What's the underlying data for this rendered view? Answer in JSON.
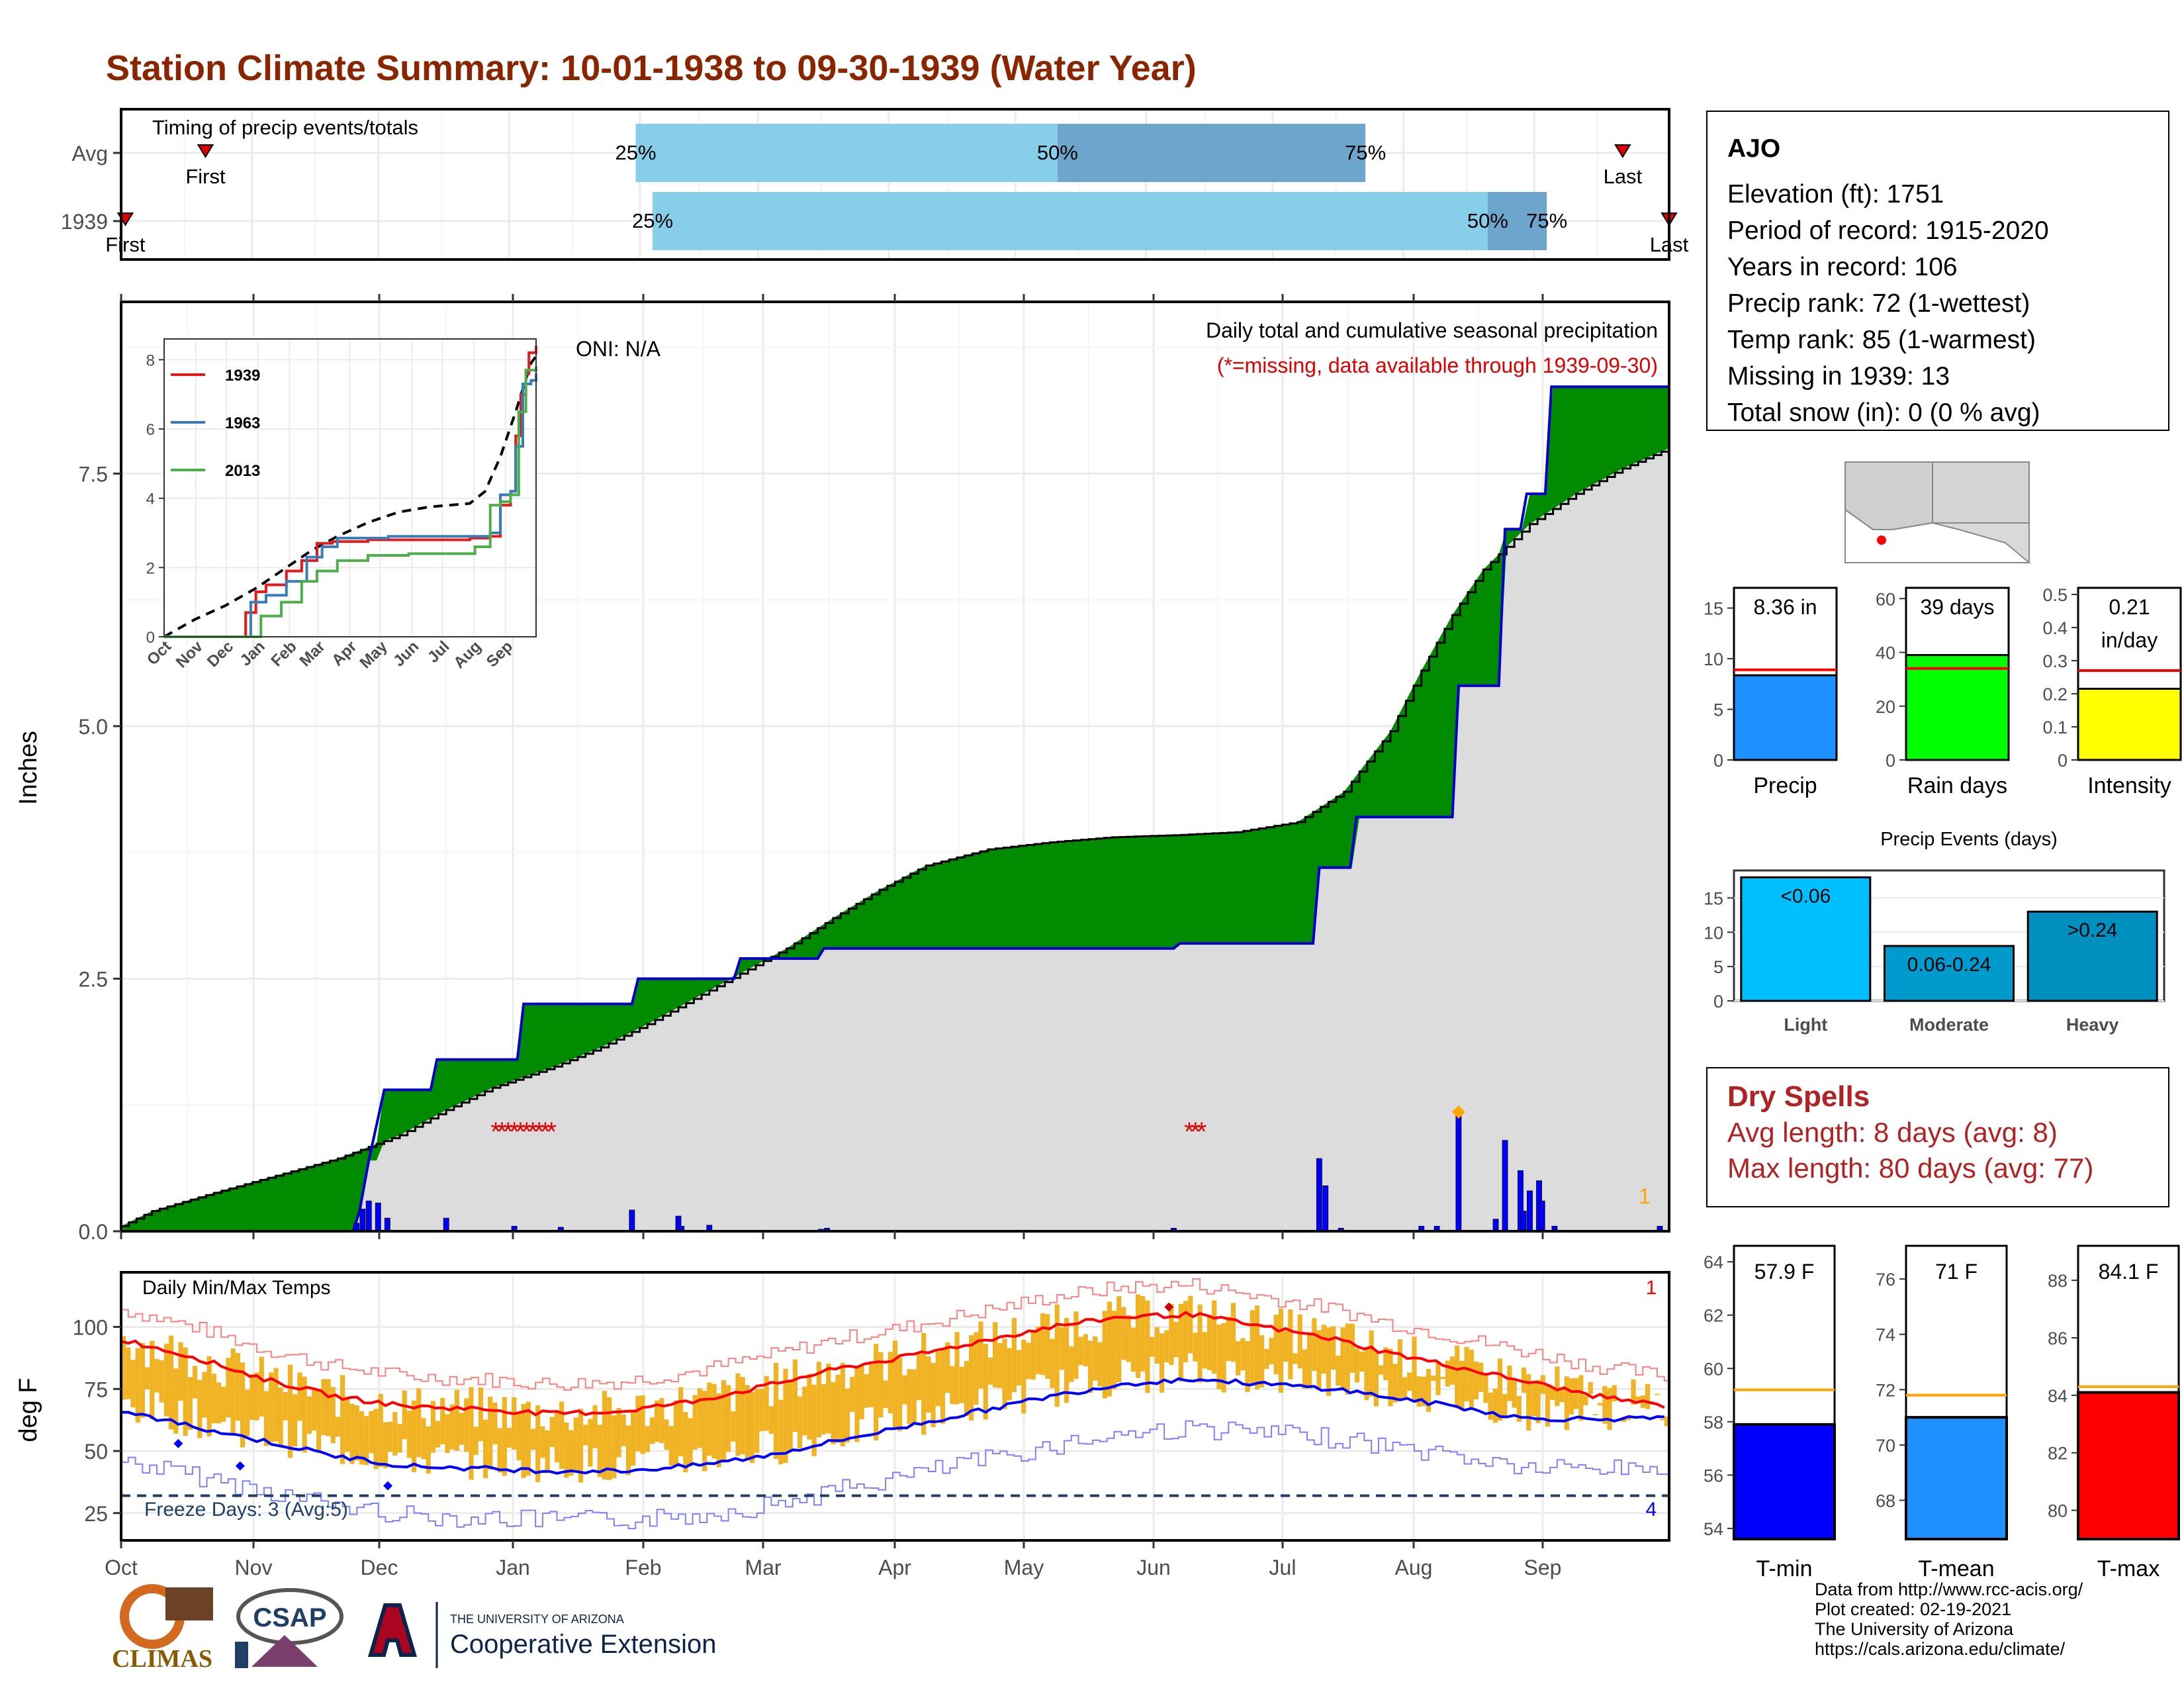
{
  "title": "Station Climate Summary: 10-01-1938 to 09-30-1939 (Water Year)",
  "months": [
    "Oct",
    "Nov",
    "Dec",
    "Jan",
    "Feb",
    "Mar",
    "Apr",
    "May",
    "Jun",
    "Jul",
    "Aug",
    "Sep"
  ],
  "timing_panel": {
    "label": "Timing of precip events/totals",
    "rows": [
      {
        "name": "Avg",
        "first_label": "First",
        "last_label": "Last",
        "first_doy": 20,
        "last_doy": 356,
        "p25": 122,
        "p50": 222,
        "p75": 295,
        "p25_label": "25%",
        "p50_label": "50%",
        "p75_label": "75%"
      },
      {
        "name": "1939",
        "first_label": "First",
        "last_label": "Last",
        "first_doy": 1,
        "last_doy": 367,
        "p25": 126,
        "p50": 324,
        "p75": 338,
        "p25_label": "25%",
        "p50_label": "50%",
        "p75_label": "75%"
      }
    ],
    "colors": {
      "light": "#87CEEB",
      "dark": "#6CA6CD",
      "marker": "#E00000"
    }
  },
  "precip_panel": {
    "ylabel": "Inches",
    "yticks": [
      0.0,
      2.5,
      5.0,
      7.5
    ],
    "ytick_labels": [
      "0.0",
      "2.5",
      "5.0",
      "7.5"
    ],
    "ylim": [
      0,
      9.2
    ],
    "oni_label": "ONI: N/A",
    "caption1": "Daily total and cumulative seasonal precipitation",
    "caption2": "(*=missing, data available through 1939-09-30)",
    "corner_count": "1",
    "colors": {
      "avg_fill": "#8B5A00",
      "obs_line": "#0000CD",
      "surplus_fill": "#008B00",
      "bg_fill": "#DCDCDC",
      "bar": "#0000FF",
      "missing": "#E00000",
      "max_marker": "#FFA500"
    },
    "avg_cumulative_points": [
      [
        0,
        0.05
      ],
      [
        10,
        0.2
      ],
      [
        30,
        0.38
      ],
      [
        50,
        0.55
      ],
      [
        70,
        0.72
      ],
      [
        90,
        0.95
      ],
      [
        105,
        1.2
      ],
      [
        120,
        1.42
      ],
      [
        140,
        1.63
      ],
      [
        155,
        1.82
      ],
      [
        170,
        2.05
      ],
      [
        185,
        2.3
      ],
      [
        200,
        2.55
      ],
      [
        215,
        2.8
      ],
      [
        230,
        3.1
      ],
      [
        245,
        3.38
      ],
      [
        260,
        3.62
      ],
      [
        280,
        3.78
      ],
      [
        300,
        3.85
      ],
      [
        320,
        3.9
      ],
      [
        340,
        3.92
      ],
      [
        360,
        3.95
      ],
      [
        380,
        4.05
      ],
      [
        395,
        4.35
      ],
      [
        410,
        4.95
      ],
      [
        420,
        5.55
      ],
      [
        430,
        6.1
      ],
      [
        440,
        6.55
      ],
      [
        455,
        7.0
      ],
      [
        470,
        7.3
      ],
      [
        485,
        7.55
      ],
      [
        500,
        7.75
      ]
    ],
    "obs_cumulative_steps": [
      [
        0,
        0
      ],
      [
        75,
        0
      ],
      [
        77,
        0.2
      ],
      [
        80,
        0.7
      ],
      [
        85,
        1.4
      ],
      [
        100,
        1.4
      ],
      [
        102,
        1.7
      ],
      [
        128,
        1.7
      ],
      [
        130,
        2.25
      ],
      [
        165,
        2.25
      ],
      [
        167,
        2.5
      ],
      [
        198,
        2.5
      ],
      [
        200,
        2.7
      ],
      [
        225,
        2.7
      ],
      [
        227,
        2.8
      ],
      [
        340,
        2.8
      ],
      [
        342,
        2.85
      ],
      [
        385,
        2.85
      ],
      [
        387,
        3.6
      ],
      [
        397,
        3.6
      ],
      [
        399,
        4.1
      ],
      [
        430,
        4.1
      ],
      [
        432,
        5.4
      ],
      [
        445,
        5.4
      ],
      [
        447,
        6.95
      ],
      [
        452,
        6.95
      ],
      [
        454,
        7.3
      ],
      [
        460,
        7.3
      ],
      [
        462,
        8.36
      ],
      [
        500,
        8.36
      ]
    ],
    "daily_bars": [
      [
        76,
        0.08
      ],
      [
        78,
        0.22
      ],
      [
        80,
        0.3
      ],
      [
        83,
        0.28
      ],
      [
        86,
        0.13
      ],
      [
        105,
        0.13
      ],
      [
        127,
        0.05
      ],
      [
        142,
        0.04
      ],
      [
        165,
        0.21
      ],
      [
        180,
        0.15
      ],
      [
        181,
        0.05
      ],
      [
        190,
        0.06
      ],
      [
        226,
        0.02
      ],
      [
        228,
        0.03
      ],
      [
        340,
        0.03
      ],
      [
        387,
        0.72
      ],
      [
        389,
        0.45
      ],
      [
        394,
        0.03
      ],
      [
        420,
        0.05
      ],
      [
        425,
        0.05
      ],
      [
        432,
        1.15
      ],
      [
        444,
        0.12
      ],
      [
        447,
        0.9
      ],
      [
        452,
        0.6
      ],
      [
        453,
        0.2
      ],
      [
        455,
        0.4
      ],
      [
        458,
        0.5
      ],
      [
        459,
        0.3
      ],
      [
        463,
        0.05
      ],
      [
        497,
        0.05
      ]
    ],
    "missing_marks": [
      [
        121,
        0.99
      ],
      [
        123,
        0.99
      ],
      [
        125,
        0.99
      ],
      [
        127,
        0.99
      ],
      [
        129,
        0.99
      ],
      [
        131,
        0.99
      ],
      [
        133,
        0.99
      ],
      [
        135,
        0.99
      ],
      [
        137,
        0.99
      ],
      [
        139,
        0.99
      ],
      [
        345,
        0.99
      ],
      [
        347,
        0.99
      ],
      [
        349,
        0.99
      ]
    ],
    "max_marker": [
      432,
      1.18
    ]
  },
  "inset": {
    "yticks": [
      0,
      2,
      4,
      6,
      8
    ],
    "ytick_labels": [
      "0",
      "2",
      "4",
      "6",
      "8"
    ],
    "xlabels": [
      "Oct",
      "Nov",
      "Dec",
      "Jan",
      "Feb",
      "Mar",
      "Apr",
      "May",
      "Jun",
      "Jul",
      "Aug",
      "Sep"
    ],
    "series": [
      {
        "name": "1939",
        "color": "#E41A1C",
        "points": [
          [
            0,
            0
          ],
          [
            75,
            0
          ],
          [
            80,
            0.7
          ],
          [
            90,
            1.3
          ],
          [
            100,
            1.5
          ],
          [
            120,
            1.9
          ],
          [
            135,
            2.2
          ],
          [
            150,
            2.7
          ],
          [
            165,
            2.75
          ],
          [
            200,
            2.8
          ],
          [
            250,
            2.8
          ],
          [
            300,
            2.85
          ],
          [
            320,
            2.9
          ],
          [
            330,
            3.8
          ],
          [
            340,
            4.2
          ],
          [
            345,
            5.8
          ],
          [
            350,
            7.0
          ],
          [
            355,
            7.6
          ],
          [
            358,
            8.2
          ],
          [
            365,
            8.4
          ]
        ]
      },
      {
        "name": "1963",
        "color": "#377EB8",
        "points": [
          [
            0,
            0
          ],
          [
            80,
            0
          ],
          [
            85,
            1.0
          ],
          [
            100,
            1.2
          ],
          [
            120,
            1.6
          ],
          [
            140,
            2.3
          ],
          [
            155,
            2.6
          ],
          [
            170,
            2.85
          ],
          [
            220,
            2.9
          ],
          [
            300,
            2.9
          ],
          [
            320,
            3.0
          ],
          [
            330,
            4.1
          ],
          [
            340,
            4.2
          ],
          [
            345,
            5.5
          ],
          [
            352,
            7.3
          ],
          [
            360,
            7.4
          ],
          [
            365,
            7.6
          ]
        ]
      },
      {
        "name": "2013",
        "color": "#4DAF4A",
        "points": [
          [
            0,
            0
          ],
          [
            80,
            0
          ],
          [
            95,
            0.6
          ],
          [
            115,
            1.0
          ],
          [
            135,
            1.6
          ],
          [
            150,
            1.9
          ],
          [
            170,
            2.2
          ],
          [
            200,
            2.35
          ],
          [
            240,
            2.4
          ],
          [
            290,
            2.4
          ],
          [
            305,
            2.6
          ],
          [
            320,
            3.8
          ],
          [
            330,
            3.9
          ],
          [
            340,
            4.1
          ],
          [
            348,
            6.5
          ],
          [
            355,
            7.7
          ],
          [
            365,
            7.8
          ]
        ]
      }
    ],
    "avg_points": [
      [
        0,
        0
      ],
      [
        30,
        0.5
      ],
      [
        60,
        0.9
      ],
      [
        90,
        1.4
      ],
      [
        120,
        2.0
      ],
      [
        145,
        2.5
      ],
      [
        170,
        2.9
      ],
      [
        200,
        3.3
      ],
      [
        230,
        3.6
      ],
      [
        260,
        3.75
      ],
      [
        300,
        3.85
      ],
      [
        315,
        4.2
      ],
      [
        330,
        5.2
      ],
      [
        345,
        6.5
      ],
      [
        360,
        7.9
      ],
      [
        365,
        8.1
      ]
    ],
    "ylim": [
      0,
      8.6
    ]
  },
  "temp_panel": {
    "ylabel": "deg F",
    "yticks": [
      25,
      50,
      75,
      100
    ],
    "ytick_labels": [
      "25",
      "50",
      "75",
      "100"
    ],
    "ylim": [
      14,
      122
    ],
    "label": "Daily Min/Max Temps",
    "freeze_label": "Freeze Days: 3 (Avg:5)",
    "freeze_line": 32,
    "count_hot": "1",
    "count_cold": "4",
    "colors": {
      "range": "#F0B323",
      "avg_max": "#FF0000",
      "avg_min": "#0000FF",
      "rec_max": "#FF7F7F",
      "rec_min": "#7F7FFF",
      "freeze": "#1F3F66"
    },
    "avg_max_points": [
      [
        0,
        95
      ],
      [
        30,
        88
      ],
      [
        60,
        79
      ],
      [
        90,
        72
      ],
      [
        120,
        68
      ],
      [
        150,
        67
      ],
      [
        180,
        65
      ],
      [
        210,
        66
      ],
      [
        240,
        70
      ],
      [
        270,
        76
      ],
      [
        300,
        83
      ],
      [
        330,
        88
      ],
      [
        360,
        94
      ],
      [
        390,
        100
      ],
      [
        420,
        104
      ],
      [
        450,
        105
      ],
      [
        480,
        100
      ],
      [
        510,
        95
      ],
      [
        530,
        90
      ],
      [
        560,
        84
      ],
      [
        590,
        78
      ],
      [
        620,
        72
      ],
      [
        650,
        68
      ]
    ],
    "avg_min_points": [
      [
        0,
        66
      ],
      [
        30,
        60
      ],
      [
        60,
        54
      ],
      [
        90,
        48
      ],
      [
        120,
        44
      ],
      [
        150,
        43
      ],
      [
        180,
        42
      ],
      [
        210,
        42
      ],
      [
        240,
        44
      ],
      [
        270,
        48
      ],
      [
        300,
        54
      ],
      [
        330,
        60
      ],
      [
        360,
        66
      ],
      [
        390,
        72
      ],
      [
        420,
        77
      ],
      [
        450,
        79
      ],
      [
        480,
        77
      ],
      [
        510,
        75
      ],
      [
        530,
        72
      ],
      [
        560,
        68
      ],
      [
        590,
        63
      ]
    ]
  },
  "station": {
    "name": "AJO",
    "lines": [
      "Elevation (ft): 1751",
      "Period of record: 1915-2020",
      "Years in record: 106",
      "Precip rank: 72 (1-wettest)",
      "Temp rank: 85 (1-warmest)",
      "Missing in 1939: 13",
      "Total snow (in): 0 (0 % avg)"
    ]
  },
  "small_bars": [
    {
      "key": "precip",
      "label": "Precip",
      "value_text": "8.36 in",
      "value": 8.36,
      "avg": 8.9,
      "ylim": [
        0,
        17
      ],
      "yticks": [
        0,
        5,
        10,
        15
      ],
      "color": "#1E90FF"
    },
    {
      "key": "raindays",
      "label": "Rain days",
      "value_text": "39 days",
      "value": 39,
      "avg": 34,
      "ylim": [
        0,
        64
      ],
      "yticks": [
        0,
        20,
        40,
        60
      ],
      "color": "#00FF00"
    },
    {
      "key": "intensity",
      "label": "Intensity",
      "value_text": "0.21",
      "value_text2": "in/day",
      "value": 0.215,
      "avg": 0.27,
      "ylim": [
        0,
        0.52
      ],
      "yticks": [
        0.0,
        0.1,
        0.2,
        0.3,
        0.4,
        0.5
      ],
      "color": "#FFFF00"
    }
  ],
  "events": {
    "title": "Precip Events (days)",
    "yticks": [
      0,
      5,
      10,
      15
    ],
    "ylim": [
      0,
      19
    ],
    "categories": [
      "Light",
      "Moderate",
      "Heavy"
    ],
    "bar_labels": [
      "<0.06",
      "0.06-0.24",
      ">0.24"
    ],
    "values": [
      18,
      8,
      13
    ],
    "colors": [
      "#00BFFF",
      "#009ACD",
      "#0090C0"
    ]
  },
  "dry_spells": {
    "title": "Dry Spells",
    "line1": "Avg length: 8 days (avg: 8)",
    "line2": "Max length: 80 days (avg: 77)"
  },
  "temp_bars": [
    {
      "label": "T-min",
      "value_text": "57.9 F",
      "value": 57.9,
      "avg": 59.2,
      "ylim": [
        53.6,
        64.6
      ],
      "yticks": [
        54,
        56,
        58,
        60,
        62,
        64
      ],
      "color": "#0000FF"
    },
    {
      "label": "T-mean",
      "value_text": "71 F",
      "value": 71.0,
      "avg": 71.8,
      "ylim": [
        66.6,
        77.2
      ],
      "yticks": [
        68,
        70,
        72,
        74,
        76
      ],
      "color": "#1E90FF"
    },
    {
      "label": "T-max",
      "value_text": "84.1 F",
      "value": 84.1,
      "avg": 84.3,
      "ylim": [
        79.0,
        89.2
      ],
      "yticks": [
        80,
        82,
        84,
        86,
        88
      ],
      "color": "#FF0000"
    }
  ],
  "footer": [
    "Data from http://www.rcc-acis.org/",
    "Plot created: 02-19-2021",
    "The University of Arizona",
    "https://cals.arizona.edu/climate/"
  ],
  "logos": {
    "climas": "CLIMAS",
    "csap": "CSAP",
    "ua_small": "THE UNIVERSITY OF ARIZONA",
    "ua_large": "Cooperative Extension"
  }
}
